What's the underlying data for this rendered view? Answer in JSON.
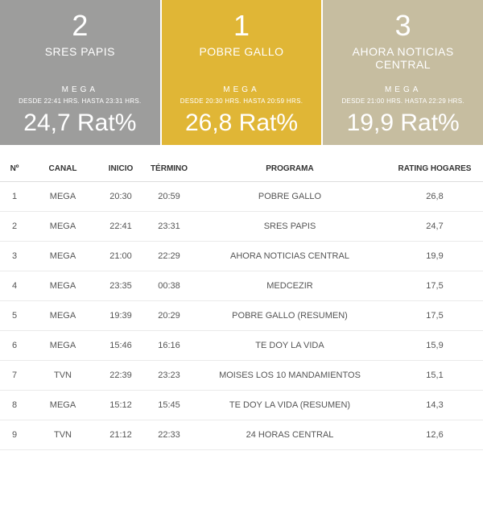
{
  "cards": [
    {
      "rank": "2",
      "title": "SRES PAPIS",
      "channel": "MEGA",
      "time": "DESDE 22:41 HRS. HASTA 23:31 HRS.",
      "rating": "24,7 Rat%",
      "bg": "#9d9d9c"
    },
    {
      "rank": "1",
      "title": "POBRE GALLO",
      "channel": "MEGA",
      "time": "DESDE 20:30 HRS. HASTA 20:59 HRS.",
      "rating": "26,8 Rat%",
      "bg": "#e0b636"
    },
    {
      "rank": "3",
      "title": "AHORA NOTICIAS CENTRAL",
      "channel": "MEGA",
      "time": "DESDE 21:00 HRS. HASTA 22:29 HRS.",
      "rating": "19,9 Rat%",
      "bg": "#c6bda0"
    }
  ],
  "table": {
    "columns": [
      "Nº",
      "CANAL",
      "INICIO",
      "TÉRMINO",
      "PROGRAMA",
      "RATING HOGARES"
    ],
    "rows": [
      [
        "1",
        "MEGA",
        "20:30",
        "20:59",
        "POBRE GALLO",
        "26,8"
      ],
      [
        "2",
        "MEGA",
        "22:41",
        "23:31",
        "SRES PAPIS",
        "24,7"
      ],
      [
        "3",
        "MEGA",
        "21:00",
        "22:29",
        "AHORA NOTICIAS CENTRAL",
        "19,9"
      ],
      [
        "4",
        "MEGA",
        "23:35",
        "00:38",
        "MEDCEZIR",
        "17,5"
      ],
      [
        "5",
        "MEGA",
        "19:39",
        "20:29",
        "POBRE GALLO (RESUMEN)",
        "17,5"
      ],
      [
        "6",
        "MEGA",
        "15:46",
        "16:16",
        "TE DOY LA VIDA",
        "15,9"
      ],
      [
        "7",
        "TVN",
        "22:39",
        "23:23",
        "MOISES LOS 10 MANDAMIENTOS",
        "15,1"
      ],
      [
        "8",
        "MEGA",
        "15:12",
        "15:45",
        "TE DOY LA VIDA (RESUMEN)",
        "14,3"
      ],
      [
        "9",
        "TVN",
        "21:12",
        "22:33",
        "24 HORAS CENTRAL",
        "12,6"
      ]
    ]
  }
}
